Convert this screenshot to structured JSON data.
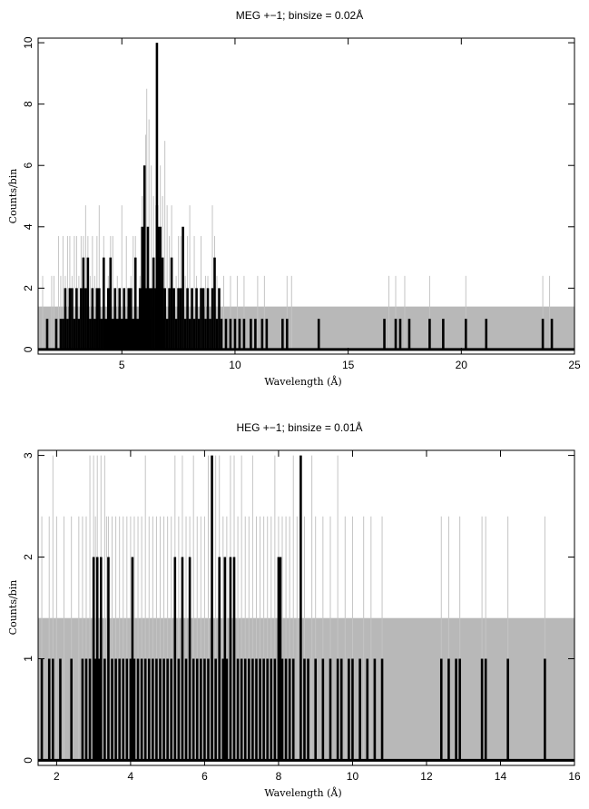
{
  "chart_data": [
    {
      "type": "histogram",
      "title": "MEG +−1; binsize = 0.02Å",
      "xlabel": "Wavelength (Å)",
      "ylabel": "Counts/bin",
      "xlim": [
        1.3,
        25
      ],
      "ylim": [
        -0.15,
        10.15
      ],
      "xticks": [
        5,
        10,
        15,
        20,
        25
      ],
      "yticks": [
        0,
        2,
        4,
        6,
        8,
        10
      ],
      "grid": false,
      "background_level": 1.4,
      "series": [
        {
          "style": "gray-thin",
          "x": [
            1.5,
            1.9,
            2.0,
            2.2,
            2.3,
            2.4,
            2.5,
            2.6,
            2.7,
            2.8,
            2.9,
            3.0,
            3.1,
            3.2,
            3.3,
            3.4,
            3.5,
            3.6,
            3.7,
            3.8,
            3.9,
            4.0,
            4.2,
            4.4,
            4.5,
            4.6,
            4.8,
            5.0,
            5.2,
            5.4,
            5.5,
            5.6,
            5.8,
            5.9,
            6.0,
            6.05,
            6.1,
            6.2,
            6.3,
            6.4,
            6.5,
            6.6,
            6.7,
            6.8,
            6.9,
            7.0,
            7.1,
            7.2,
            7.4,
            7.5,
            7.6,
            7.8,
            7.9,
            8.0,
            8.2,
            8.3,
            8.5,
            8.7,
            8.8,
            9.0,
            9.1,
            9.2,
            9.5,
            9.8,
            10.1,
            10.4,
            11.0,
            11.3,
            12.3,
            12.5,
            16.8,
            17.1,
            17.5,
            18.6,
            20.2,
            23.6,
            23.9
          ],
          "values": [
            2.4,
            2.4,
            2.4,
            3.7,
            2.4,
            3.7,
            2.4,
            3.7,
            3.7,
            2.4,
            3.7,
            3.7,
            2.4,
            3.7,
            3.7,
            4.7,
            3.7,
            2.4,
            3.7,
            2.4,
            3.7,
            4.7,
            3.7,
            2.4,
            3.7,
            3.7,
            2.4,
            4.7,
            3.7,
            2.4,
            3.7,
            3.7,
            2.4,
            5.0,
            6.0,
            7.0,
            8.5,
            7.5,
            6.0,
            5.0,
            4.7,
            4.7,
            6.0,
            5.0,
            6.8,
            4.7,
            3.7,
            4.7,
            2.4,
            3.7,
            3.7,
            2.4,
            3.7,
            4.7,
            3.7,
            2.4,
            3.7,
            2.4,
            2.4,
            4.7,
            3.7,
            2.4,
            2.4,
            2.4,
            2.4,
            2.4,
            2.4,
            2.4,
            2.4,
            2.4,
            2.4,
            2.4,
            2.4,
            2.4,
            2.4,
            2.4,
            2.4
          ]
        },
        {
          "style": "black-thick",
          "x": [
            1.7,
            2.1,
            2.3,
            2.4,
            2.5,
            2.6,
            2.7,
            2.8,
            2.9,
            3.0,
            3.1,
            3.2,
            3.3,
            3.4,
            3.5,
            3.6,
            3.7,
            3.8,
            3.9,
            4.0,
            4.1,
            4.2,
            4.3,
            4.4,
            4.5,
            4.6,
            4.7,
            4.8,
            4.9,
            5.0,
            5.1,
            5.2,
            5.3,
            5.4,
            5.5,
            5.6,
            5.7,
            5.8,
            5.9,
            6.0,
            6.1,
            6.15,
            6.2,
            6.25,
            6.3,
            6.4,
            6.5,
            6.55,
            6.6,
            6.65,
            6.7,
            6.75,
            6.8,
            6.85,
            6.9,
            7.0,
            7.1,
            7.2,
            7.3,
            7.4,
            7.5,
            7.6,
            7.7,
            7.8,
            7.9,
            8.0,
            8.1,
            8.2,
            8.3,
            8.4,
            8.5,
            8.6,
            8.7,
            8.8,
            8.9,
            9.0,
            9.1,
            9.2,
            9.3,
            9.4,
            9.6,
            9.8,
            10.0,
            10.2,
            10.4,
            10.7,
            10.9,
            11.2,
            11.4,
            12.1,
            12.3,
            13.7,
            16.6,
            17.1,
            17.3,
            17.7,
            18.6,
            19.2,
            20.2,
            21.1,
            23.6,
            24.0
          ],
          "values": [
            1,
            1,
            1,
            1,
            2,
            1,
            2,
            2,
            1,
            2,
            1,
            2,
            3,
            2,
            3,
            1,
            2,
            1,
            2,
            2,
            1,
            3,
            1,
            2,
            3,
            1,
            2,
            1,
            2,
            1,
            2,
            1,
            2,
            2,
            1,
            3,
            1,
            2,
            4,
            6,
            2,
            4,
            2,
            1,
            2,
            3,
            2,
            10,
            4,
            3,
            4,
            2,
            3,
            1,
            2,
            1,
            2,
            3,
            2,
            1,
            2,
            2,
            4,
            1,
            2,
            1,
            2,
            1,
            2,
            1,
            2,
            2,
            1,
            2,
            1,
            2,
            3,
            1,
            2,
            1,
            1,
            1,
            1,
            1,
            1,
            1,
            1,
            1,
            1,
            1,
            1,
            1,
            1,
            1,
            1,
            1,
            1,
            1,
            1,
            1,
            1,
            1
          ]
        }
      ]
    },
    {
      "type": "histogram",
      "title": "HEG +−1; binsize = 0.01Å",
      "xlabel": "Wavelength (Å)",
      "ylabel": "Counts/bin",
      "xlim": [
        1.5,
        16
      ],
      "ylim": [
        -0.05,
        3.05
      ],
      "xticks": [
        2,
        4,
        6,
        8,
        10,
        12,
        14,
        16
      ],
      "yticks": [
        0,
        1,
        2,
        3
      ],
      "grid": false,
      "background_level": 1.4,
      "series": [
        {
          "style": "gray-thin",
          "x": [
            1.6,
            1.8,
            1.9,
            2.0,
            2.2,
            2.4,
            2.6,
            2.7,
            2.8,
            2.9,
            3.0,
            3.05,
            3.1,
            3.2,
            3.3,
            3.35,
            3.4,
            3.5,
            3.6,
            3.7,
            3.8,
            3.9,
            4.0,
            4.1,
            4.2,
            4.3,
            4.4,
            4.5,
            4.6,
            4.7,
            4.8,
            4.9,
            5.0,
            5.1,
            5.2,
            5.3,
            5.4,
            5.5,
            5.6,
            5.7,
            5.8,
            5.9,
            6.0,
            6.1,
            6.2,
            6.3,
            6.4,
            6.5,
            6.6,
            6.7,
            6.8,
            6.9,
            7.0,
            7.1,
            7.2,
            7.3,
            7.4,
            7.5,
            7.6,
            7.7,
            7.8,
            7.9,
            8.0,
            8.1,
            8.2,
            8.3,
            8.4,
            8.5,
            8.7,
            8.9,
            9.0,
            9.2,
            9.4,
            9.6,
            9.8,
            10.0,
            10.3,
            10.5,
            10.8,
            12.4,
            12.6,
            12.9,
            13.5,
            13.6,
            14.2,
            15.2
          ],
          "values": [
            2.4,
            2.4,
            3.0,
            2.4,
            2.4,
            2.4,
            2.4,
            2.4,
            2.4,
            3.0,
            3.0,
            2.4,
            3.0,
            3.0,
            3.0,
            2.4,
            2.4,
            2.4,
            2.4,
            2.4,
            2.4,
            2.4,
            2.4,
            2.4,
            2.4,
            2.4,
            3.0,
            2.4,
            2.4,
            2.4,
            2.4,
            2.4,
            2.4,
            2.4,
            3.0,
            2.4,
            3.0,
            2.4,
            2.4,
            3.0,
            2.4,
            2.4,
            2.4,
            3.0,
            2.4,
            3.0,
            3.0,
            2.4,
            2.4,
            3.0,
            3.0,
            2.4,
            3.0,
            2.4,
            2.4,
            3.0,
            2.4,
            2.4,
            2.4,
            2.4,
            2.4,
            3.0,
            2.4,
            2.4,
            2.4,
            2.4,
            3.0,
            2.4,
            2.4,
            3.0,
            2.4,
            2.4,
            2.4,
            3.0,
            2.4,
            2.4,
            2.4,
            2.4,
            2.4,
            2.4,
            2.4,
            2.4,
            2.4,
            2.4,
            2.4,
            2.4
          ]
        },
        {
          "style": "black-thick",
          "x": [
            1.6,
            1.8,
            1.9,
            2.1,
            2.4,
            2.7,
            2.8,
            2.9,
            3.0,
            3.05,
            3.1,
            3.15,
            3.2,
            3.3,
            3.4,
            3.5,
            3.6,
            3.7,
            3.8,
            3.9,
            4.0,
            4.05,
            4.1,
            4.2,
            4.3,
            4.4,
            4.5,
            4.6,
            4.7,
            4.8,
            4.9,
            5.0,
            5.1,
            5.2,
            5.3,
            5.4,
            5.5,
            5.6,
            5.7,
            5.8,
            5.9,
            6.0,
            6.1,
            6.2,
            6.3,
            6.4,
            6.5,
            6.55,
            6.6,
            6.7,
            6.8,
            6.9,
            7.0,
            7.1,
            7.2,
            7.3,
            7.4,
            7.5,
            7.6,
            7.7,
            7.8,
            7.9,
            8.0,
            8.05,
            8.1,
            8.2,
            8.3,
            8.4,
            8.6,
            8.7,
            8.8,
            9.0,
            9.2,
            9.4,
            9.6,
            9.7,
            9.9,
            10.0,
            10.2,
            10.4,
            10.6,
            10.8,
            12.4,
            12.6,
            12.8,
            12.9,
            13.5,
            13.6,
            14.2,
            15.2
          ],
          "values": [
            1,
            1,
            1,
            1,
            1,
            1,
            1,
            1,
            2,
            1,
            2,
            1,
            2,
            1,
            2,
            1,
            1,
            1,
            1,
            1,
            1,
            2,
            1,
            1,
            1,
            1,
            1,
            1,
            1,
            1,
            1,
            1,
            1,
            2,
            1,
            2,
            1,
            2,
            1,
            1,
            1,
            1,
            1,
            3,
            1,
            2,
            1,
            2,
            1,
            2,
            2,
            1,
            1,
            1,
            1,
            1,
            1,
            1,
            1,
            1,
            1,
            1,
            2,
            2,
            1,
            1,
            1,
            1,
            3,
            1,
            1,
            1,
            1,
            1,
            1,
            1,
            1,
            1,
            1,
            1,
            1,
            1,
            1,
            1,
            1,
            1,
            1,
            1,
            1,
            1
          ]
        }
      ]
    }
  ]
}
